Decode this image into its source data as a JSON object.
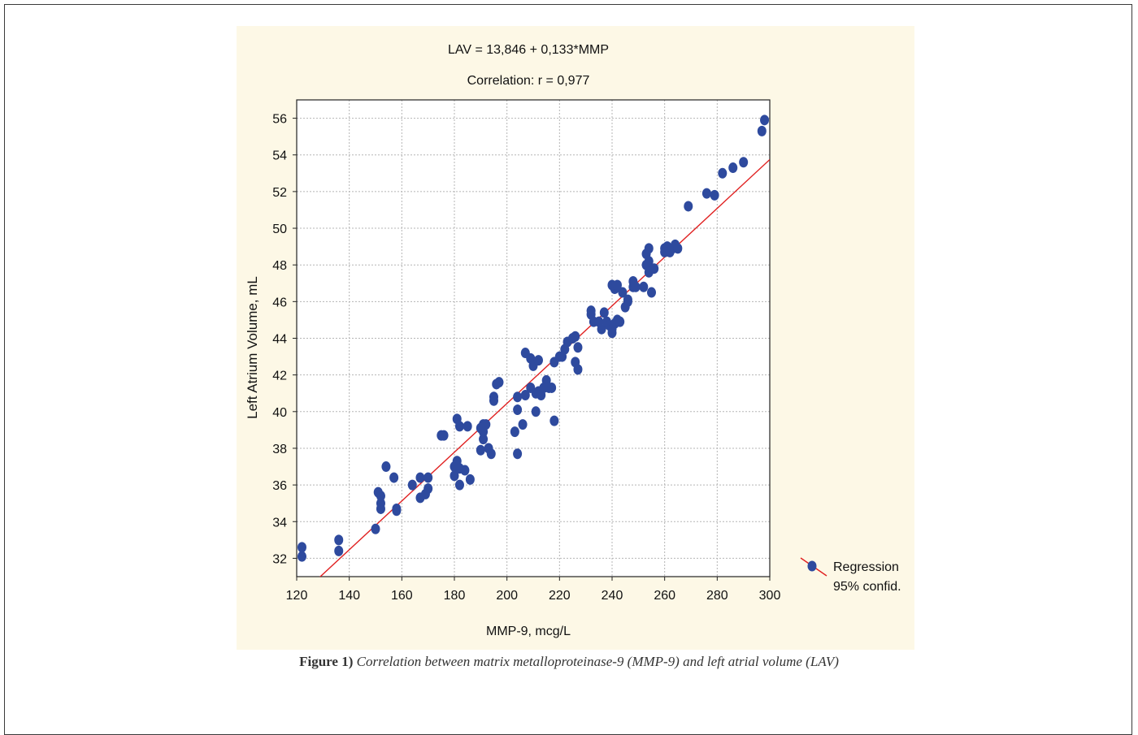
{
  "chart_data": {
    "type": "scatter",
    "title": "LAV = 13,846 + 0,133*MMP",
    "subtitle": "Correlation: r = 0,977",
    "xlabel": "MMP-9, mcg/L",
    "ylabel": "Left Atrium Volume, mL",
    "xlim": [
      120,
      300
    ],
    "ylim": [
      31,
      57
    ],
    "xticks": [
      "120",
      "140",
      "160",
      "180",
      "200",
      "220",
      "240",
      "260",
      "280",
      "300"
    ],
    "yticks": [
      "32",
      "34",
      "36",
      "38",
      "40",
      "42",
      "44",
      "46",
      "48",
      "50",
      "52",
      "54",
      "56"
    ],
    "grid": true,
    "legend_position": "right-bottom",
    "legend": [
      {
        "label": "Regression"
      },
      {
        "label": "95% confid."
      }
    ],
    "regression": {
      "intercept": 13.846,
      "slope": 0.133
    },
    "colors": {
      "points": "#2e4a9e",
      "line": "#e02020",
      "background": "#fdf8e6"
    },
    "points": [
      [
        122,
        32.6
      ],
      [
        122,
        32.1
      ],
      [
        136,
        33.0
      ],
      [
        136,
        32.4
      ],
      [
        150,
        33.6
      ],
      [
        151,
        35.6
      ],
      [
        152,
        35.4
      ],
      [
        152,
        35.0
      ],
      [
        152,
        34.7
      ],
      [
        154,
        37.0
      ],
      [
        157,
        36.4
      ],
      [
        158,
        34.6
      ],
      [
        158,
        34.7
      ],
      [
        164,
        36.0
      ],
      [
        167,
        36.4
      ],
      [
        167,
        35.3
      ],
      [
        169,
        35.5
      ],
      [
        170,
        35.8
      ],
      [
        170,
        36.4
      ],
      [
        175,
        38.7
      ],
      [
        176,
        38.7
      ],
      [
        180,
        36.5
      ],
      [
        180,
        37.0
      ],
      [
        181,
        37.3
      ],
      [
        181,
        39.6
      ],
      [
        182,
        39.2
      ],
      [
        182,
        36.0
      ],
      [
        182,
        36.9
      ],
      [
        184,
        36.8
      ],
      [
        185,
        39.2
      ],
      [
        186,
        36.3
      ],
      [
        190,
        37.9
      ],
      [
        190,
        39.1
      ],
      [
        191,
        38.5
      ],
      [
        191,
        38.9
      ],
      [
        191,
        39.3
      ],
      [
        192,
        39.3
      ],
      [
        193,
        38.0
      ],
      [
        194,
        37.7
      ],
      [
        195,
        40.6
      ],
      [
        195,
        40.8
      ],
      [
        196,
        41.5
      ],
      [
        197,
        41.6
      ],
      [
        203,
        38.9
      ],
      [
        204,
        37.7
      ],
      [
        204,
        40.1
      ],
      [
        204,
        40.8
      ],
      [
        206,
        39.3
      ],
      [
        207,
        40.9
      ],
      [
        207,
        43.2
      ],
      [
        209,
        42.9
      ],
      [
        209,
        41.3
      ],
      [
        210,
        42.5
      ],
      [
        211,
        40.0
      ],
      [
        211,
        41.0
      ],
      [
        212,
        41.1
      ],
      [
        212,
        42.8
      ],
      [
        213,
        40.9
      ],
      [
        214,
        41.3
      ],
      [
        215,
        41.7
      ],
      [
        216,
        41.3
      ],
      [
        217,
        41.3
      ],
      [
        218,
        42.7
      ],
      [
        218,
        39.5
      ],
      [
        220,
        43.0
      ],
      [
        221,
        43.0
      ],
      [
        222,
        43.4
      ],
      [
        223,
        43.8
      ],
      [
        225,
        44.0
      ],
      [
        226,
        44.1
      ],
      [
        226,
        42.7
      ],
      [
        227,
        42.3
      ],
      [
        227,
        43.5
      ],
      [
        232,
        45.5
      ],
      [
        232,
        45.3
      ],
      [
        233,
        44.9
      ],
      [
        235,
        44.9
      ],
      [
        236,
        44.5
      ],
      [
        237,
        45.4
      ],
      [
        238,
        44.9
      ],
      [
        239,
        44.7
      ],
      [
        240,
        44.3
      ],
      [
        240,
        44.5
      ],
      [
        240,
        46.9
      ],
      [
        241,
        44.8
      ],
      [
        241,
        46.7
      ],
      [
        242,
        45.0
      ],
      [
        242,
        46.9
      ],
      [
        243,
        44.9
      ],
      [
        244,
        46.5
      ],
      [
        245,
        45.7
      ],
      [
        246,
        46.0
      ],
      [
        246,
        46.1
      ],
      [
        248,
        46.8
      ],
      [
        248,
        47.1
      ],
      [
        249,
        46.8
      ],
      [
        252,
        46.8
      ],
      [
        253,
        48.6
      ],
      [
        253,
        48.0
      ],
      [
        254,
        48.9
      ],
      [
        254,
        47.6
      ],
      [
        254,
        48.2
      ],
      [
        255,
        46.5
      ],
      [
        256,
        47.8
      ],
      [
        260,
        48.9
      ],
      [
        260,
        48.7
      ],
      [
        261,
        49.0
      ],
      [
        262,
        48.7
      ],
      [
        263,
        48.9
      ],
      [
        264,
        49.1
      ],
      [
        265,
        48.9
      ],
      [
        269,
        51.2
      ],
      [
        276,
        51.9
      ],
      [
        279,
        51.8
      ],
      [
        282,
        53.0
      ],
      [
        286,
        53.3
      ],
      [
        290,
        53.6
      ],
      [
        297,
        55.3
      ],
      [
        298,
        55.9
      ]
    ]
  },
  "caption": {
    "label": "Figure 1)",
    "text": "Correlation between matrix metalloproteinase-9 (MMP-9) and left atrial volume (LAV)"
  }
}
